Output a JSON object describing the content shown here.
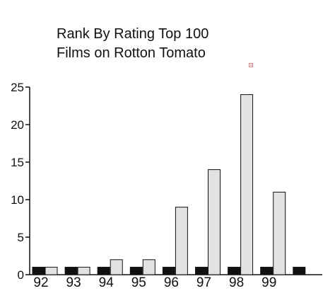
{
  "chart_data": {
    "type": "bar",
    "title_lines": [
      "Rank By Rating Top 100",
      "Films on Rotton Tomato"
    ],
    "xlabel": "",
    "ylabel": "",
    "categories": [
      "92",
      "93",
      "94",
      "95",
      "96",
      "97",
      "98",
      "99",
      ""
    ],
    "series": [
      {
        "values": [
          1,
          1,
          1,
          1,
          1,
          1,
          1,
          1,
          1
        ],
        "color": "#111111"
      },
      {
        "values": [
          1,
          1,
          2,
          2,
          9,
          14,
          24,
          11,
          null
        ],
        "color": "#e2e2e2"
      }
    ],
    "ylim": [
      0,
      25
    ],
    "yticks": [
      0,
      5,
      10,
      15,
      20,
      25
    ],
    "grid": false,
    "legend": "none"
  }
}
